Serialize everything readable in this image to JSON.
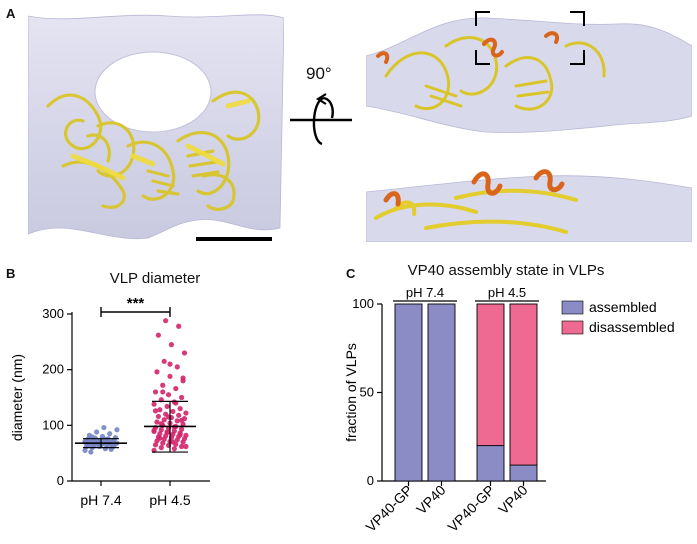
{
  "panel_a": {
    "letter": "A",
    "rotation_label": "90°"
  },
  "panel_b": {
    "letter": "B"
  },
  "panel_c": {
    "letter": "C"
  },
  "colors": {
    "density": "#dcdcee",
    "ribbon": "#e6d02e",
    "ribbon_dark": "#b79c10",
    "helix": "#d9651c",
    "assembled": "#8b8bc6",
    "disassembled": "#ee6a92",
    "dot_ph74": "#7584c4",
    "dot_ph45": "#d4256a"
  },
  "chart_data": [
    {
      "type": "scatter",
      "title": "VLP diameter",
      "ylabel": "diameter (nm)",
      "categories": [
        "pH 7.4",
        "pH 4.5"
      ],
      "ylim": [
        0,
        300
      ],
      "yticks": [
        0,
        100,
        200,
        300
      ],
      "significance": "***",
      "series": [
        {
          "category": "pH 7.4",
          "mean": 68,
          "sd_low": 60,
          "sd_high": 76,
          "values": [
            55,
            58,
            60,
            61,
            62,
            62,
            63,
            64,
            64,
            65,
            65,
            66,
            66,
            67,
            67,
            67,
            68,
            68,
            68,
            69,
            69,
            69,
            70,
            70,
            70,
            71,
            71,
            72,
            72,
            73,
            73,
            74,
            74,
            75,
            76,
            77,
            78,
            80,
            82,
            85,
            88,
            92,
            96,
            52,
            57,
            66,
            71,
            75,
            79,
            63
          ]
        },
        {
          "category": "pH 4.5",
          "mean": 98,
          "sd_low": 52,
          "sd_high": 143,
          "values": [
            55,
            58,
            60,
            62,
            64,
            65,
            66,
            68,
            70,
            71,
            72,
            74,
            75,
            76,
            78,
            79,
            80,
            81,
            82,
            84,
            85,
            86,
            88,
            89,
            90,
            92,
            93,
            95,
            96,
            98,
            100,
            102,
            104,
            106,
            108,
            110,
            112,
            114,
            116,
            118,
            120,
            122,
            125,
            128,
            130,
            134,
            138,
            142,
            146,
            150,
            155,
            160,
            166,
            172,
            180,
            188,
            196,
            205,
            215,
            230,
            245,
            262,
            278,
            288,
            62,
            70,
            77,
            83,
            87,
            91,
            97,
            103,
            109,
            115,
            126,
            140,
            160,
            185,
            210
          ]
        }
      ]
    },
    {
      "type": "bar",
      "title": "VP40 assembly state in VLPs",
      "ylabel": "fraction of VLPs",
      "categories": [
        "VP40-GP",
        "VP40",
        "VP40-GP",
        "VP40"
      ],
      "groups": [
        {
          "label": "pH 7.4",
          "bars": [
            0,
            1
          ]
        },
        {
          "label": "pH 4.5",
          "bars": [
            2,
            3
          ]
        }
      ],
      "ylim": [
        0,
        100
      ],
      "yticks": [
        0,
        50,
        100
      ],
      "stacked": true,
      "series": [
        {
          "name": "assembled",
          "values": [
            100,
            100,
            20,
            9
          ]
        },
        {
          "name": "disassembled",
          "values": [
            0,
            0,
            80,
            91
          ]
        }
      ],
      "legend": "top-right"
    }
  ]
}
